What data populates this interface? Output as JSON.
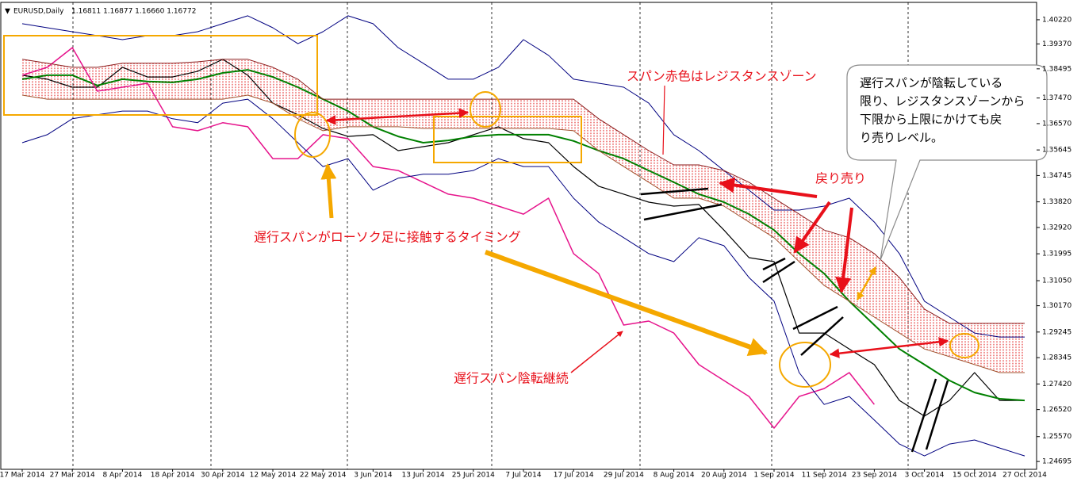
{
  "chart_data": {
    "type": "line",
    "symbol": "EURUSD,Daily",
    "quote": "1.16811 1.16877 1.16660 1.16772",
    "categories": [
      "17 Mar 2014",
      null,
      "27 Mar 2014",
      null,
      "8 Apr 2014",
      null,
      "18 Apr 2014",
      null,
      "30 Apr 2014",
      null,
      "12 May 2014",
      null,
      "22 May 2014",
      null,
      "3 Jun 2014",
      null,
      "13 Jun 2014",
      null,
      "25 Jun 2014",
      null,
      "7 Jul 2014",
      null,
      "17 Jul 2014",
      null,
      "29 Jul 2014",
      null,
      "8 Aug 2014",
      null,
      "20 Aug 2014",
      null,
      "1 Sep 2014",
      null,
      "11 Sep 2014",
      null,
      "23 Sep 2014",
      null,
      "3 Oct 2014",
      null,
      "15 Oct 2014",
      null,
      "27 Oct 2014"
    ],
    "series": [
      {
        "color": "#000000",
        "width": 1.2,
        "values": [
          1.3827,
          1.3813,
          1.3785,
          1.3785,
          1.3855,
          1.3821,
          1.3821,
          1.3841,
          1.3883,
          1.3827,
          1.3729,
          1.3688,
          1.364,
          1.3612,
          1.3618,
          1.3562,
          1.3576,
          1.359,
          1.3618,
          1.3646,
          1.3604,
          1.359,
          1.3506,
          1.3437,
          1.3409,
          1.3381,
          1.3367,
          1.3373,
          1.3283,
          1.3186,
          1.3172,
          1.2921,
          1.2921,
          1.2865,
          1.281,
          1.2684,
          1.2629,
          1.2684,
          1.2782,
          1.2684,
          1.2684
        ]
      },
      {
        "color": "#008000",
        "width": 2,
        "values": [
          1.3813,
          1.3827,
          1.3827,
          1.3791,
          1.3813,
          1.3805,
          1.3802,
          1.3813,
          1.3835,
          1.3846,
          1.3821,
          1.3785,
          1.3743,
          1.3701,
          1.3646,
          1.3612,
          1.359,
          1.3598,
          1.3612,
          1.3618,
          1.3618,
          1.3618,
          1.3596,
          1.3562,
          1.3534,
          1.3492,
          1.3451,
          1.3409,
          1.3381,
          1.3339,
          1.3283,
          1.32,
          1.313,
          1.3033,
          1.2949,
          1.2865,
          1.281,
          1.2754,
          1.2712,
          1.269,
          1.2684
        ]
      },
      {
        "color": "#e6148c",
        "width": 1.5,
        "values": [
          1.3827,
          1.3855,
          1.3924,
          1.3771,
          1.3785,
          1.3799,
          1.3646,
          1.3632,
          1.366,
          1.3646,
          1.3534,
          1.3534,
          1.3618,
          1.3604,
          1.3506,
          1.3492,
          1.3451,
          1.3409,
          1.3395,
          1.3367,
          1.3339,
          1.3395,
          1.32,
          1.313,
          1.2949,
          1.2963,
          1.2921,
          1.281,
          1.2754,
          1.2698,
          1.2587,
          1.2698,
          1.2726,
          1.2782,
          1.267,
          null,
          null,
          null,
          null,
          null,
          null
        ]
      },
      {
        "color": "#000080",
        "width": 1,
        "values": [
          1.4008,
          1.3994,
          1.398,
          1.3966,
          1.3952,
          1.3966,
          1.3966,
          1.398,
          1.4008,
          1.4036,
          1.3994,
          1.3938,
          1.398,
          1.4036,
          1.4008,
          1.3924,
          1.3869,
          1.3813,
          1.3813,
          1.3855,
          1.3952,
          1.3897,
          1.3813,
          1.3799,
          1.3785,
          1.3729,
          1.3618,
          1.3562,
          1.3492,
          1.3423,
          1.3353,
          1.3353,
          1.3367,
          1.3395,
          1.3311,
          1.32,
          1.3033,
          1.2977,
          1.2921,
          1.2907,
          1.2907
        ]
      },
      {
        "color": "#000080",
        "width": 1,
        "values": [
          1.359,
          1.3618,
          1.3674,
          1.3688,
          1.3701,
          1.3701,
          1.3674,
          1.366,
          1.3729,
          1.3743,
          1.3674,
          1.359,
          1.3506,
          1.3534,
          1.3423,
          1.3465,
          1.3479,
          1.3479,
          1.3492,
          1.3534,
          1.3506,
          1.3506,
          1.3395,
          1.3311,
          1.3256,
          1.32,
          1.3172,
          1.3256,
          1.3228,
          1.3116,
          1.3033,
          1.2782,
          1.267,
          1.2698,
          1.2615,
          1.2531,
          1.2489,
          1.2531,
          1.2545,
          1.2517,
          1.2489
        ]
      },
      {
        "color": "#8b1a1a",
        "width": 1,
        "values": [
          1.3883,
          1.3869,
          1.3855,
          1.3855,
          1.3869,
          1.3869,
          1.3869,
          1.3874,
          1.3883,
          1.3883,
          1.3855,
          1.3813,
          1.3743,
          1.3743,
          1.3743,
          1.3743,
          1.3743,
          1.3743,
          1.3743,
          1.3743,
          1.3743,
          1.3743,
          1.3743,
          1.3674,
          1.3618,
          1.3562,
          1.3512,
          1.3512,
          1.3492,
          1.3451,
          1.3395,
          1.3339,
          1.3283,
          1.3256,
          1.32,
          1.3116,
          1.3005,
          1.2955,
          1.2955,
          1.2955,
          1.2955
        ]
      },
      {
        "color": "#a0522d",
        "width": 1,
        "values": [
          1.3757,
          1.3743,
          1.3743,
          1.3743,
          1.3743,
          1.3743,
          1.3743,
          1.3743,
          1.3743,
          1.3757,
          1.3729,
          1.3674,
          1.3632,
          1.3646,
          1.3646,
          1.3646,
          1.364,
          1.364,
          1.364,
          1.364,
          1.364,
          1.364,
          1.3632,
          1.3562,
          1.3506,
          1.3451,
          1.3395,
          1.3395,
          1.3367,
          1.3311,
          1.3256,
          1.3172,
          1.3088,
          1.3033,
          1.2977,
          1.2921,
          1.2865,
          1.2838,
          1.281,
          1.2782,
          1.2782
        ]
      }
    ],
    "cloud_color": "#e01010",
    "ylim": [
      1.2442,
      1.4058
    ],
    "yticks": [
      {
        "value": 1.4022,
        "label": "1.40220"
      },
      {
        "value": 1.3937,
        "label": "1.39370"
      },
      {
        "value": 1.38495,
        "label": "1.38495"
      },
      {
        "value": 1.3747,
        "label": "1.37470"
      },
      {
        "value": 1.3657,
        "label": "1.36570"
      },
      {
        "value": 1.35645,
        "label": "1.35645"
      },
      {
        "value": 1.34745,
        "label": "1.34745"
      },
      {
        "value": 1.3382,
        "label": "1.33820"
      },
      {
        "value": 1.3292,
        "label": "1.32920"
      },
      {
        "value": 1.31995,
        "label": "1.31995"
      },
      {
        "value": 1.3105,
        "label": "1.31050"
      },
      {
        "value": 1.3017,
        "label": "1.30170"
      },
      {
        "value": 1.29245,
        "label": "1.29245"
      },
      {
        "value": 1.28345,
        "label": "1.28345"
      },
      {
        "value": 1.2742,
        "label": "1.27420"
      },
      {
        "value": 1.2652,
        "label": "1.26520"
      },
      {
        "value": 1.2557,
        "label": "1.25570"
      },
      {
        "value": 1.24695,
        "label": "1.24695"
      }
    ],
    "annotations": [
      "スパン赤色はレジスタンスゾーン",
      "戻り売り",
      "遅行スパンがローソク足に接触するタイミング",
      "遅行スパン陰転継続"
    ],
    "callout": [
      "遅行スパンが陰転している",
      "限り、レジスタンスゾーンから",
      "下限から上限にかけても戻",
      "り売りレベル。"
    ]
  }
}
